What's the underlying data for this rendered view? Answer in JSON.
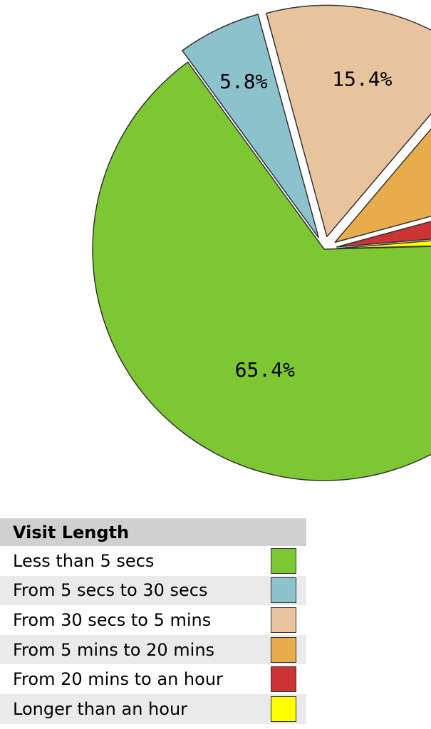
{
  "chart_data": {
    "type": "pie",
    "title": "",
    "slices": [
      {
        "label": "Less than 5 secs",
        "value": 65.4,
        "color": "#7dc832",
        "shown_label": "65.4%"
      },
      {
        "label": "From 5 secs to 30 secs",
        "value": 5.8,
        "color": "#8cc2cc",
        "shown_label": "5.8%"
      },
      {
        "label": "From 30 secs to 5 mins",
        "value": 15.4,
        "color": "#e8c49e",
        "shown_label": "15.4%"
      },
      {
        "label": "From 5 mins to 20 mins",
        "value": 9.6,
        "color": "#e8ac4a",
        "shown_label": ""
      },
      {
        "label": "From 20 mins to an hour",
        "value": 2.9,
        "color": "#cc3333",
        "shown_label": ""
      },
      {
        "label": "Longer than an hour",
        "value": 0.9,
        "color": "#ffff00",
        "shown_label": ""
      }
    ],
    "legend_title": "Visit Length"
  }
}
